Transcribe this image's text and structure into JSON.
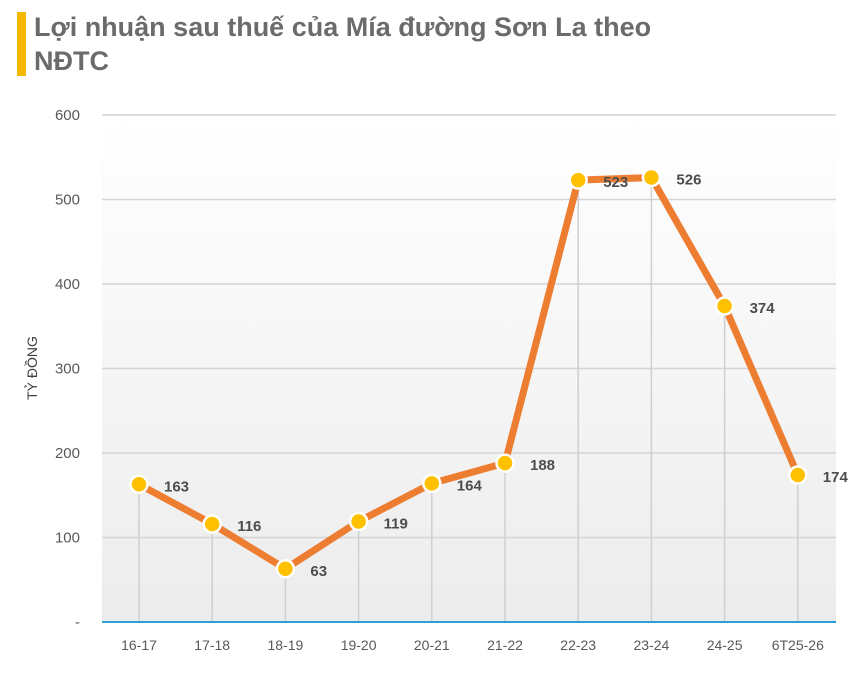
{
  "title": "Lợi nhuận sau thuế của Mía đường Sơn La theo NĐTC",
  "colors": {
    "accent_bar": "#f5b800",
    "line": "#ed7d31",
    "marker": "#ffc000",
    "axis": "#2e9fd6"
  },
  "chart_data": {
    "type": "line",
    "title": "Lợi nhuận sau thuế của Mía đường Sơn La theo NĐTC",
    "ylabel": "TỶ ĐỒNG",
    "xlabel": "",
    "categories": [
      "16-17",
      "17-18",
      "18-19",
      "19-20",
      "20-21",
      "21-22",
      "22-23",
      "23-24",
      "24-25",
      "6T25-26"
    ],
    "values": [
      163,
      116,
      63,
      119,
      164,
      188,
      523,
      526,
      374,
      174
    ],
    "ylim": [
      0,
      600
    ],
    "yticks": [
      0,
      100,
      200,
      300,
      400,
      500,
      600
    ],
    "ytick_labels": [
      "-",
      "100",
      "200",
      "300",
      "400",
      "500",
      "600"
    ],
    "grid": true,
    "legend": "none"
  }
}
